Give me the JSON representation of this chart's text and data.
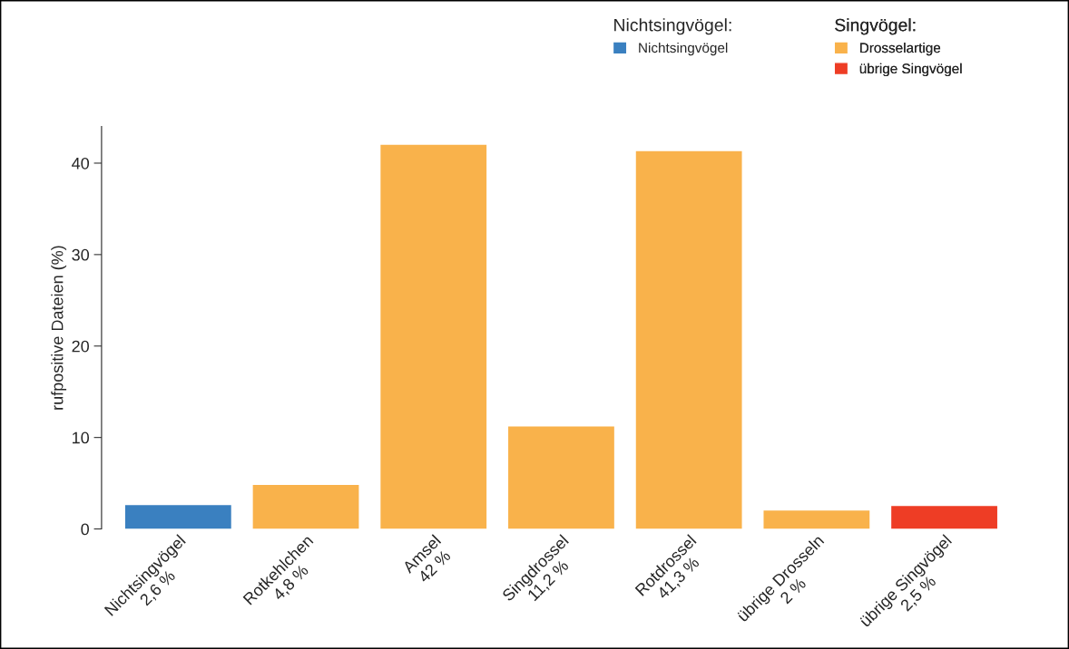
{
  "chart_data": {
    "type": "bar",
    "ylabel": "rufpositive Dateien (%)",
    "categories": [
      "Nichtsingvögel\n2,6 %",
      "Rotkehlchen\n4,8 %",
      "Amsel\n42 %",
      "Singdrossel\n11,2 %",
      "Rotdrossel\n41,3 %",
      "übrige Drosseln\n2 %",
      "übrige Singvögel\n2,5 %"
    ],
    "series": [
      {
        "name": "Nichtsingvögel",
        "color": "#3a80c0",
        "values": [
          2.6,
          null,
          null,
          null,
          null,
          null,
          null
        ]
      },
      {
        "name": "Drosselartige",
        "color": "#f9b24b",
        "values": [
          null,
          4.8,
          42,
          11.2,
          41.3,
          2,
          null
        ]
      },
      {
        "name": "übrige Singvögel",
        "color": "#ee3d25",
        "values": [
          null,
          null,
          null,
          null,
          null,
          null,
          2.5
        ]
      }
    ],
    "annotations": [
      "Nichtsingvögel:",
      "Singvögel:"
    ],
    "ylim": [
      0,
      44
    ],
    "yticks": [
      0,
      10,
      20,
      30,
      40
    ],
    "legend": "top right",
    "grid": false
  }
}
